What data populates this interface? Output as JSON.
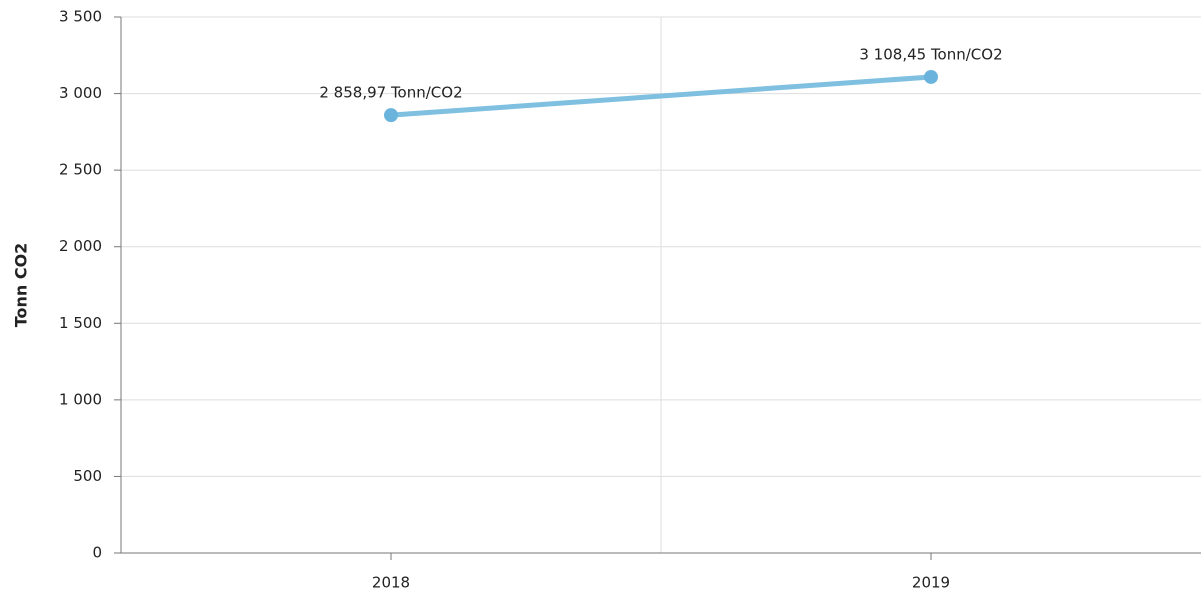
{
  "chart_data": {
    "type": "line",
    "y_label": "Tonn CO2",
    "categories": [
      "2018",
      "2019"
    ],
    "series": [
      {
        "name": "Tonn CO2",
        "color": "#7fc0e0",
        "marker_color": "#6ab3dc",
        "values": [
          2858.97,
          3108.45
        ],
        "value_labels": [
          "2 858,97 Tonn/CO2",
          "3 108,45 Tonn/CO2"
        ]
      }
    ],
    "ylim": [
      0,
      3500
    ],
    "yticks": [
      0,
      500,
      {
        "value": 1000,
        "label": "1 000"
      },
      {
        "value": 1500,
        "label": "1 500"
      },
      {
        "value": 2000,
        "label": "2 000"
      },
      {
        "value": 2500,
        "label": "2 500"
      },
      {
        "value": 3000,
        "label": "3 000"
      },
      {
        "value": 3500,
        "label": "3 500"
      }
    ],
    "grid": true
  }
}
